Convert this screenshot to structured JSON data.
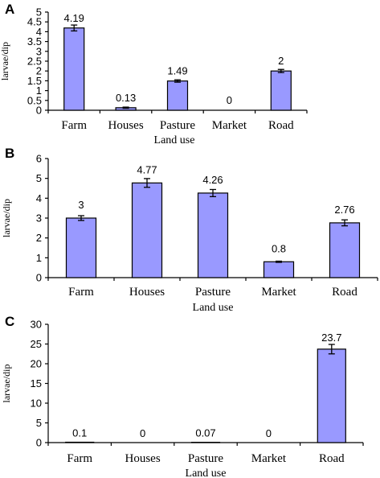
{
  "chart_data": [
    {
      "type": "bar",
      "panel": "A",
      "categories": [
        "Farm",
        "Houses",
        "Pasture",
        "Market",
        "Road"
      ],
      "values": [
        4.19,
        0.13,
        1.49,
        0,
        2
      ],
      "data_labels": [
        "4.19",
        "0.13",
        "1.49",
        "0",
        "2"
      ],
      "errors": [
        0.15,
        0.03,
        0.06,
        0,
        0.08
      ],
      "ylim": [
        0,
        5
      ],
      "yticks": [
        "0",
        "0.5",
        "1",
        "1.5",
        "2",
        "2.5",
        "3",
        "3.5",
        "4",
        "4.5",
        "5"
      ],
      "xlabel": "Land use",
      "ylabel": "larvae/dip",
      "bar_color": "#9999ff"
    },
    {
      "type": "bar",
      "panel": "B",
      "categories": [
        "Farm",
        "Houses",
        "Pasture",
        "Market",
        "Road"
      ],
      "values": [
        3,
        4.77,
        4.26,
        0.8,
        2.76
      ],
      "data_labels": [
        "3",
        "4.77",
        "4.26",
        "0.8",
        "2.76"
      ],
      "errors": [
        0.12,
        0.22,
        0.18,
        0.03,
        0.15
      ],
      "ylim": [
        0,
        6
      ],
      "yticks": [
        "0",
        "1",
        "2",
        "3",
        "4",
        "5",
        "6"
      ],
      "xlabel": "Land use",
      "ylabel": "larvae/dip",
      "bar_color": "#9999ff"
    },
    {
      "type": "bar",
      "panel": "C",
      "categories": [
        "Farm",
        "Houses",
        "Pasture",
        "Market",
        "Road"
      ],
      "values": [
        0.1,
        0,
        0.07,
        0,
        23.7
      ],
      "data_labels": [
        "0.1",
        "0",
        "0.07",
        "0",
        "23.7"
      ],
      "errors": [
        0,
        0,
        0,
        0,
        1.2
      ],
      "ylim": [
        0,
        30
      ],
      "yticks": [
        "0",
        "5",
        "10",
        "15",
        "20",
        "25",
        "30"
      ],
      "xlabel": "Land use",
      "ylabel": "larvae/dip",
      "bar_color": "#9999ff"
    }
  ]
}
